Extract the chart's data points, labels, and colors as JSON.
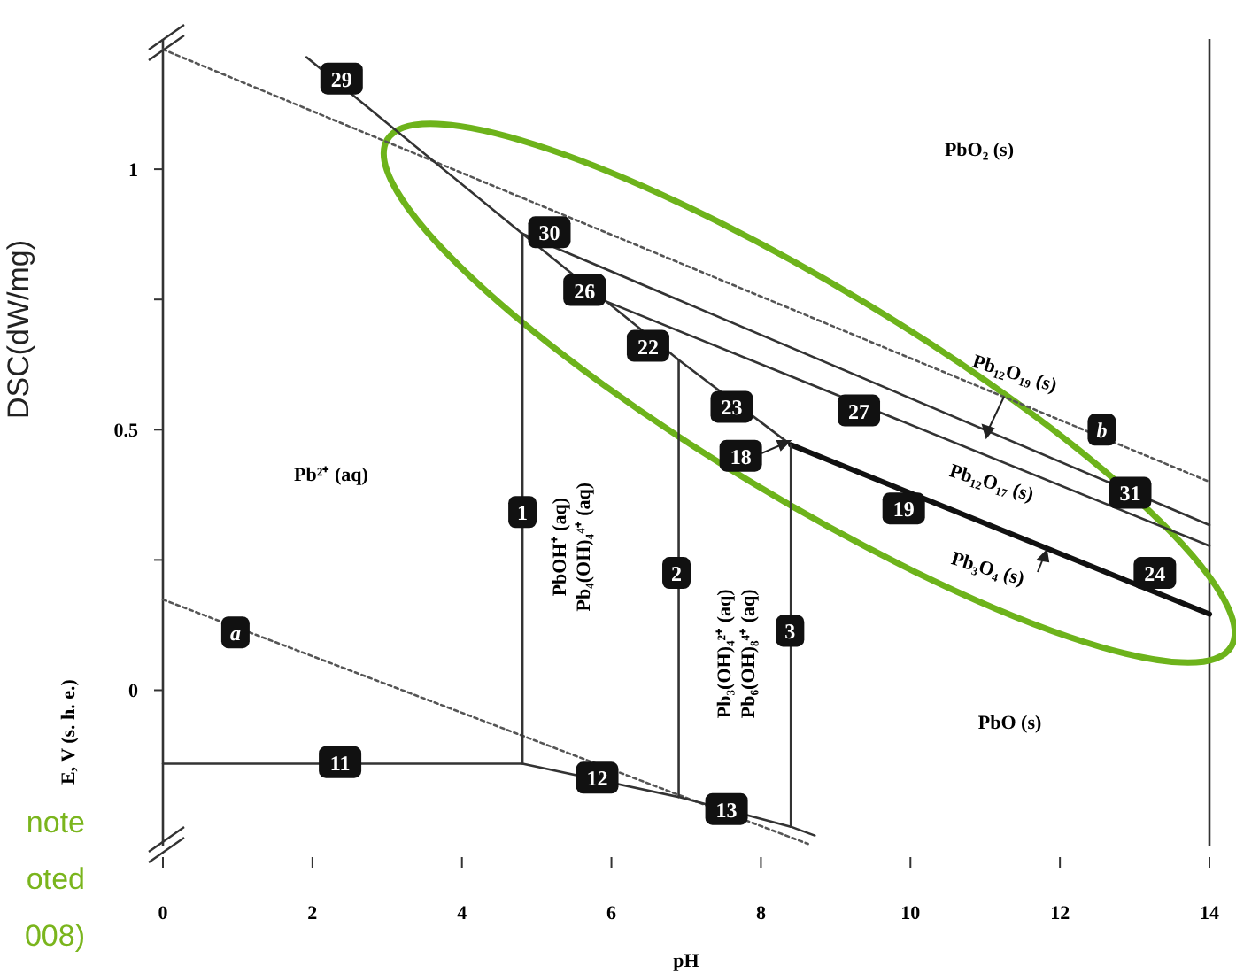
{
  "chart_data": {
    "type": "line",
    "xlabel": "pH",
    "ylabel": "E, V (s. h. e.)",
    "xlim": [
      0,
      14
    ],
    "ylim": [
      -0.3,
      1.25
    ],
    "xticks": [
      0,
      2,
      4,
      6,
      8,
      10,
      12,
      14
    ],
    "yticks": [
      0,
      {
        "value": 0.25,
        "label": null
      },
      0.5,
      {
        "value": 0.75,
        "label": null
      },
      1
    ],
    "grid": false,
    "series": [
      {
        "color": "#555555",
        "line_style": "dotted",
        "x": [
          0,
          14
        ],
        "values": [
          1.23,
          0.4
        ]
      },
      {
        "color": "#555555",
        "line_style": "dotted",
        "x": [
          0,
          8.63
        ],
        "values": [
          0.174,
          -0.295
        ]
      },
      {
        "color": "#333333",
        "x": [
          1.92,
          4.81,
          6.9,
          8.4
        ],
        "values": [
          1.215,
          0.876,
          0.634,
          0.471
        ]
      },
      {
        "color": "#111111",
        "x": [
          8.4,
          14
        ],
        "values": [
          0.471,
          0.146
        ]
      },
      {
        "color": "#333333",
        "x": [
          4.81,
          14
        ],
        "values": [
          0.876,
          0.317
        ]
      },
      {
        "color": "#333333",
        "x": [
          5.95,
          14
        ],
        "values": [
          0.745,
          0.277
        ]
      },
      {
        "color": "#333333",
        "x": [
          4.81,
          4.81
        ],
        "values": [
          0.876,
          -0.141
        ]
      },
      {
        "color": "#333333",
        "x": [
          6.9,
          6.9
        ],
        "values": [
          0.634,
          -0.205
        ]
      },
      {
        "color": "#333333",
        "x": [
          8.4,
          8.4
        ],
        "values": [
          0.471,
          -0.262
        ]
      },
      {
        "color": "#333333",
        "x": [
          0,
          4.81,
          6.9,
          8.4,
          8.72
        ],
        "values": [
          -0.141,
          -0.141,
          -0.205,
          -0.262,
          -0.279
        ]
      }
    ],
    "annotations": [
      {
        "text": "29",
        "x": 2.39,
        "y": 1.174
      },
      {
        "text": "30",
        "x": 5.17,
        "y": 0.879
      },
      {
        "text": "26",
        "x": 5.64,
        "y": 0.768
      },
      {
        "text": "22",
        "x": 6.49,
        "y": 0.661
      },
      {
        "text": "23",
        "x": 7.61,
        "y": 0.544
      },
      {
        "text": "18",
        "x": 7.73,
        "y": 0.45
      },
      {
        "text": "27",
        "x": 9.31,
        "y": 0.537
      },
      {
        "text": "b",
        "x": 12.56,
        "y": 0.5
      },
      {
        "text": "31",
        "x": 12.94,
        "y": 0.379
      },
      {
        "text": "19",
        "x": 9.91,
        "y": 0.349
      },
      {
        "text": "24",
        "x": 13.27,
        "y": 0.225
      },
      {
        "text": "1",
        "x": 4.81,
        "y": 0.342
      },
      {
        "text": "2",
        "x": 6.87,
        "y": 0.225
      },
      {
        "text": "3",
        "x": 8.39,
        "y": 0.114
      },
      {
        "text": "a",
        "x": 0.97,
        "y": 0.111
      },
      {
        "text": "11",
        "x": 2.37,
        "y": -0.138
      },
      {
        "text": "12",
        "x": 5.81,
        "y": -0.168
      },
      {
        "text": "13",
        "x": 7.54,
        "y": -0.228
      },
      "PbO₂ (s)",
      "Pb²⁺ (aq)",
      "PbO (s)",
      "Pb₁₂O₁₉ (s)",
      "Pb₁₂O₁₇ (s)",
      "Pb₃O₄ (s)",
      "PbOH⁺ (aq)",
      "Pb₄(OH)₄⁴⁺ (aq)",
      "Pb₃(OH)₄²⁺ (aq)",
      "Pb₆(OH)₈⁴⁺ (aq)",
      "DSC(dW/mg)",
      "note",
      "oted",
      "008)"
    ]
  }
}
